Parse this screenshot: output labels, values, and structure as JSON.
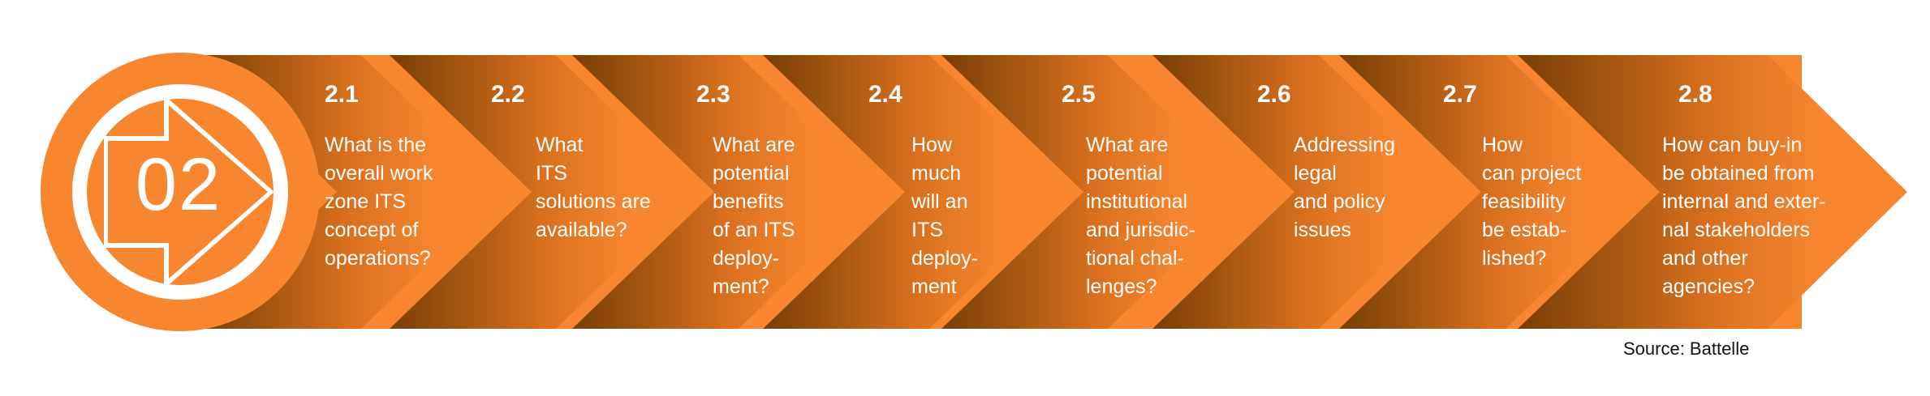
{
  "colors": {
    "orange": "#F7862F",
    "dark_brown": "#7A3D06",
    "white": "#FFFFFF",
    "source_text": "#111111"
  },
  "badge": {
    "number": "02",
    "icon": "right-arrow-icon"
  },
  "steps": [
    {
      "number": "2.1",
      "lines": [
        "What is the",
        "overall work",
        "zone ITS",
        "concept of",
        "operations?"
      ]
    },
    {
      "number": "2.2",
      "lines": [
        "What",
        "ITS",
        "solutions are",
        "available?"
      ]
    },
    {
      "number": "2.3",
      "lines": [
        "What are",
        "potential",
        "benefits",
        "of an ITS",
        "deploy-",
        "ment?"
      ]
    },
    {
      "number": "2.4",
      "lines": [
        "How",
        "much",
        "will an",
        "ITS",
        "deploy-",
        "ment"
      ]
    },
    {
      "number": "2.5",
      "lines": [
        "What are",
        "potential",
        "institutional",
        "and jurisdic-",
        "tional chal-",
        "lenges?"
      ]
    },
    {
      "number": "2.6",
      "lines": [
        "Addressing",
        "legal",
        "and policy",
        "issues"
      ]
    },
    {
      "number": "2.7",
      "lines": [
        "How",
        "can project",
        "feasibility",
        "be estab-",
        "lished?"
      ]
    },
    {
      "number": "2.8",
      "lines": [
        "How can buy-in",
        "be obtained from",
        "internal and exter-",
        "nal stakeholders",
        "and other",
        "agencies?"
      ]
    }
  ],
  "source": "Source: Battelle"
}
